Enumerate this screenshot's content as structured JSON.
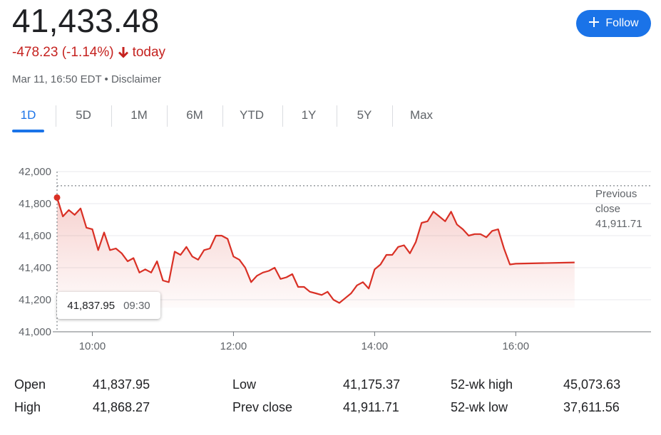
{
  "header": {
    "price": "41,433.48",
    "change_text": "-478.23 (-1.14%)",
    "change_period": "today",
    "timestamp": "Mar 11, 16:50 EDT",
    "disclaimer": "Disclaimer",
    "separator": " • ",
    "follow_label": "Follow"
  },
  "tabs": [
    "1D",
    "5D",
    "1M",
    "6M",
    "YTD",
    "1Y",
    "5Y",
    "Max"
  ],
  "active_tab": "1D",
  "colors": {
    "line": "#d93025",
    "accent": "#1a73e8",
    "negative": "#c5221f"
  },
  "prev_close": {
    "line1": "Previous",
    "line2": "close",
    "value": "41,911.71"
  },
  "tooltip": {
    "value": "41,837.95",
    "time": "09:30"
  },
  "stats": {
    "open_label": "Open",
    "open_value": "41,837.95",
    "high_label": "High",
    "high_value": "41,868.27",
    "low_label": "Low",
    "low_value": "41,175.37",
    "prevclose_label": "Prev close",
    "prevclose_value": "41,911.71",
    "wkhigh_label": "52-wk high",
    "wkhigh_value": "45,073.63",
    "wklow_label": "52-wk low",
    "wklow_value": "37,611.56"
  },
  "chart_data": {
    "type": "area",
    "ylim": [
      41000,
      42000
    ],
    "yticks": [
      42000,
      41800,
      41600,
      41400,
      41200,
      41000
    ],
    "ytick_labels": [
      "42,000",
      "41,800",
      "41,600",
      "41,400",
      "41,200",
      "41,000"
    ],
    "xlim": [
      "09:30",
      "17:55"
    ],
    "xticks": [
      "10:00",
      "12:00",
      "14:00",
      "16:00"
    ],
    "previous_close": 41911.71,
    "grid": true,
    "series": [
      {
        "x": [
          "09:30",
          "09:35",
          "09:40",
          "09:45",
          "09:50",
          "09:55",
          "10:00",
          "10:05",
          "10:10",
          "10:15",
          "10:20",
          "10:25",
          "10:30",
          "10:35",
          "10:40",
          "10:45",
          "10:50",
          "10:55",
          "11:00",
          "11:05",
          "11:10",
          "11:15",
          "11:20",
          "11:25",
          "11:30",
          "11:35",
          "11:40",
          "11:45",
          "11:50",
          "11:55",
          "12:00",
          "12:05",
          "12:10",
          "12:15",
          "12:20",
          "12:25",
          "12:30",
          "12:35",
          "12:40",
          "12:45",
          "12:50",
          "12:55",
          "13:00",
          "13:05",
          "13:10",
          "13:15",
          "13:20",
          "13:25",
          "13:30",
          "13:35",
          "13:40",
          "13:45",
          "13:50",
          "13:55",
          "14:00",
          "14:05",
          "14:10",
          "14:15",
          "14:20",
          "14:25",
          "14:30",
          "14:35",
          "14:40",
          "14:45",
          "14:50",
          "14:55",
          "15:00",
          "15:05",
          "15:10",
          "15:15",
          "15:20",
          "15:25",
          "15:30",
          "15:35",
          "15:40",
          "15:45",
          "15:50",
          "15:55",
          "16:00",
          "16:50"
        ],
        "values": [
          41838,
          41720,
          41760,
          41730,
          41770,
          41650,
          41640,
          41510,
          41620,
          41510,
          41520,
          41490,
          41440,
          41460,
          41370,
          41390,
          41370,
          41440,
          41320,
          41310,
          41500,
          41480,
          41530,
          41470,
          41450,
          41510,
          41520,
          41600,
          41600,
          41580,
          41470,
          41450,
          41400,
          41310,
          41350,
          41370,
          41380,
          41400,
          41330,
          41340,
          41360,
          41280,
          41280,
          41250,
          41240,
          41230,
          41250,
          41200,
          41180,
          41210,
          41240,
          41290,
          41310,
          41270,
          41390,
          41420,
          41480,
          41480,
          41530,
          41540,
          41490,
          41560,
          41680,
          41690,
          41750,
          41720,
          41690,
          41750,
          41670,
          41640,
          41600,
          41610,
          41610,
          41590,
          41630,
          41640,
          41520,
          41420,
          41425,
          41433
        ]
      }
    ]
  }
}
